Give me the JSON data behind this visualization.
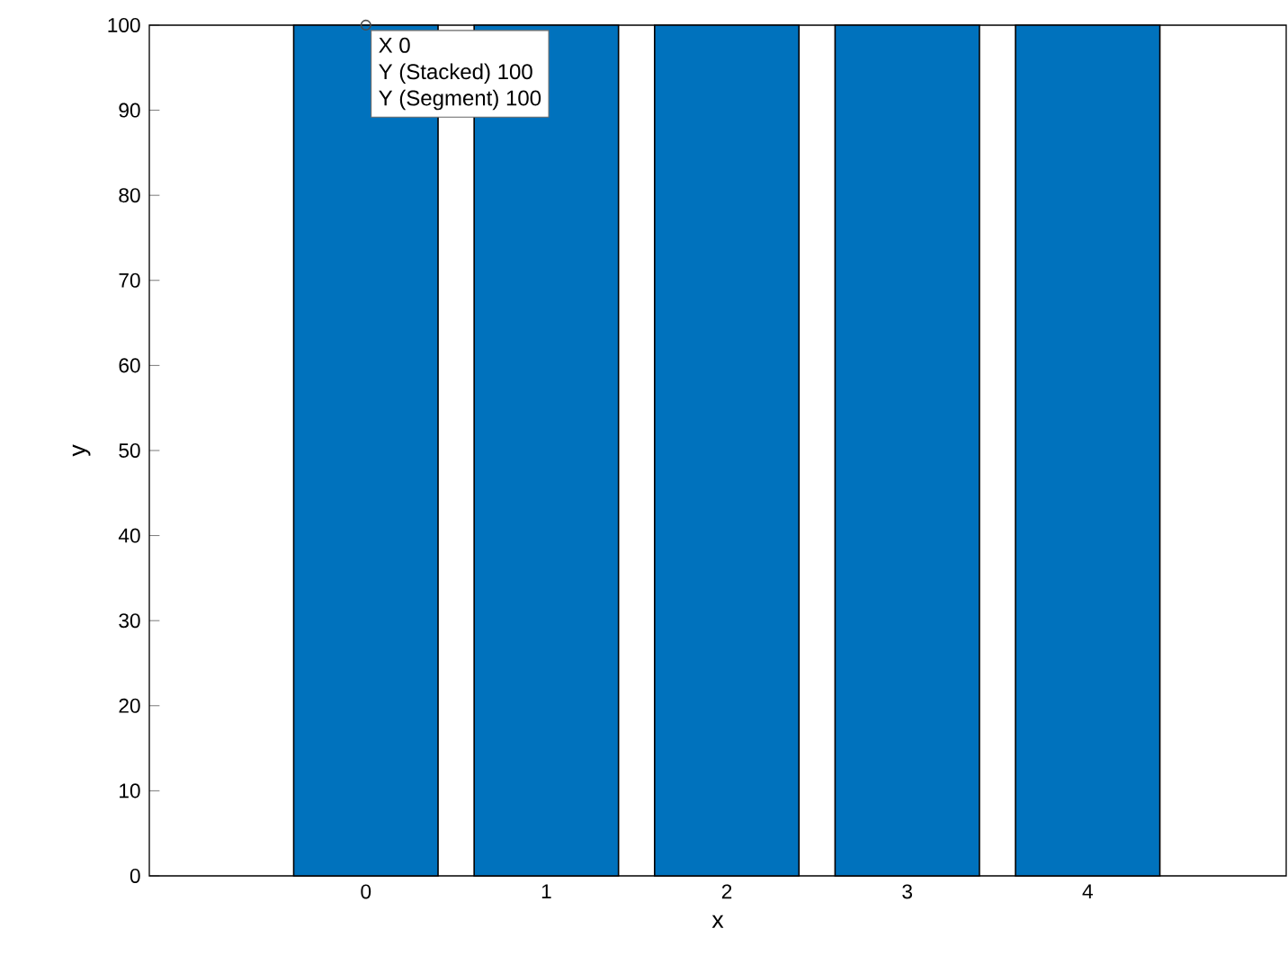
{
  "chart_data": {
    "type": "bar",
    "xlabel": "x",
    "ylabel": "y",
    "x": [
      0,
      1,
      2,
      3,
      4
    ],
    "values": [
      100,
      100,
      100,
      100,
      100
    ],
    "color": "#0072bd",
    "xlim": [
      -1.2,
      5.1
    ],
    "ylim": [
      0,
      100
    ],
    "xticks": [
      0,
      1,
      2,
      3,
      4
    ],
    "yticks": [
      0,
      10,
      20,
      30,
      40,
      50,
      60,
      70,
      80,
      90,
      100
    ],
    "annotations": [
      {
        "text": "X 0",
        "x": 0,
        "y": 100
      },
      "Y (Stacked) 100",
      "Y (Segment) 100"
    ]
  }
}
